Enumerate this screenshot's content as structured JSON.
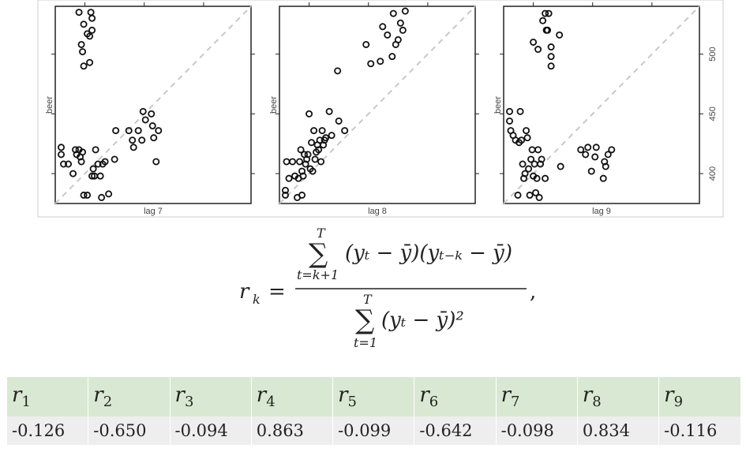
{
  "chart_data": [
    {
      "type": "scatter",
      "xlabel": "lag 7",
      "ylabel": "beer",
      "ylim": [
        375,
        540
      ],
      "xlim": [
        375,
        540
      ],
      "reference_line": "dashed diagonal y = x",
      "points": [
        [
          395,
          535
        ],
        [
          405,
          535
        ],
        [
          399,
          525
        ],
        [
          406,
          520
        ],
        [
          402,
          517
        ],
        [
          397,
          508
        ],
        [
          404,
          515
        ],
        [
          406,
          530
        ],
        [
          398,
          502
        ],
        [
          399,
          490
        ],
        [
          404,
          493
        ],
        [
          380,
          422
        ],
        [
          380,
          416
        ],
        [
          382,
          408
        ],
        [
          386,
          408
        ],
        [
          390,
          400
        ],
        [
          392,
          420
        ],
        [
          393,
          416
        ],
        [
          395,
          420
        ],
        [
          396,
          414
        ],
        [
          397,
          410
        ],
        [
          398,
          418
        ],
        [
          399,
          382
        ],
        [
          402,
          382
        ],
        [
          406,
          398
        ],
        [
          407,
          404
        ],
        [
          408,
          398
        ],
        [
          409,
          420
        ],
        [
          411,
          408
        ],
        [
          413,
          398
        ],
        [
          414,
          380
        ],
        [
          415,
          408
        ],
        [
          417,
          410
        ],
        [
          420,
          383
        ],
        [
          425,
          412
        ],
        [
          426,
          436
        ],
        [
          437,
          436
        ],
        [
          440,
          428
        ],
        [
          441,
          422
        ],
        [
          445,
          436
        ],
        [
          448,
          428
        ],
        [
          449,
          452
        ],
        [
          451,
          445
        ],
        [
          456,
          450
        ],
        [
          457,
          440
        ],
        [
          458,
          430
        ],
        [
          460,
          410
        ],
        [
          462,
          436
        ]
      ]
    },
    {
      "type": "scatter",
      "xlabel": "lag 8",
      "ylabel": "beer",
      "ylim": [
        375,
        540
      ],
      "xlim": [
        375,
        540
      ],
      "reference_line": "dashed diagonal y = x",
      "points": [
        [
          380,
          382
        ],
        [
          380,
          386
        ],
        [
          381,
          410
        ],
        [
          383,
          396
        ],
        [
          386,
          410
        ],
        [
          388,
          398
        ],
        [
          390,
          380
        ],
        [
          391,
          396
        ],
        [
          392,
          410
        ],
        [
          393,
          420
        ],
        [
          394,
          382
        ],
        [
          394,
          402
        ],
        [
          395,
          398
        ],
        [
          396,
          416
        ],
        [
          397,
          408
        ],
        [
          398,
          412
        ],
        [
          399,
          416
        ],
        [
          400,
          450
        ],
        [
          401,
          404
        ],
        [
          402,
          426
        ],
        [
          403,
          402
        ],
        [
          404,
          436
        ],
        [
          405,
          412
        ],
        [
          406,
          418
        ],
        [
          407,
          424
        ],
        [
          408,
          420
        ],
        [
          409,
          428
        ],
        [
          410,
          410
        ],
        [
          411,
          436
        ],
        [
          412,
          424
        ],
        [
          413,
          428
        ],
        [
          414,
          430
        ],
        [
          417,
          452
        ],
        [
          419,
          432
        ],
        [
          424,
          486
        ],
        [
          425,
          444
        ],
        [
          430,
          436
        ],
        [
          448,
          508
        ],
        [
          452,
          492
        ],
        [
          460,
          494
        ],
        [
          462,
          523
        ],
        [
          466,
          516
        ],
        [
          470,
          498
        ],
        [
          471,
          534
        ],
        [
          473,
          508
        ],
        [
          475,
          512
        ],
        [
          477,
          526
        ],
        [
          479,
          520
        ],
        [
          481,
          536
        ]
      ]
    },
    {
      "type": "scatter",
      "xlabel": "lag 9",
      "ylabel": "beer",
      "ylim": [
        375,
        540
      ],
      "xlim": [
        375,
        540
      ],
      "tick_labels_y": [
        "400",
        "450",
        "500"
      ],
      "reference_line": "dashed diagonal y = x",
      "points": [
        [
          380,
          452
        ],
        [
          380,
          444
        ],
        [
          381,
          436
        ],
        [
          383,
          432
        ],
        [
          385,
          428
        ],
        [
          387,
          382
        ],
        [
          388,
          426
        ],
        [
          389,
          452
        ],
        [
          390,
          428
        ],
        [
          391,
          408
        ],
        [
          392,
          396
        ],
        [
          393,
          400
        ],
        [
          394,
          436
        ],
        [
          395,
          430
        ],
        [
          396,
          404
        ],
        [
          397,
          382
        ],
        [
          398,
          412
        ],
        [
          399,
          420
        ],
        [
          400,
          398
        ],
        [
          401,
          408
        ],
        [
          402,
          384
        ],
        [
          403,
          396
        ],
        [
          404,
          420
        ],
        [
          405,
          380
        ],
        [
          406,
          408
        ],
        [
          407,
          412
        ],
        [
          410,
          396
        ],
        [
          400,
          510
        ],
        [
          404,
          504
        ],
        [
          408,
          528
        ],
        [
          410,
          534
        ],
        [
          411,
          520
        ],
        [
          412,
          520
        ],
        [
          413,
          534
        ],
        [
          415,
          506
        ],
        [
          415,
          498
        ],
        [
          415,
          490
        ],
        [
          422,
          516
        ],
        [
          423,
          406
        ],
        [
          440,
          420
        ],
        [
          444,
          416
        ],
        [
          446,
          422
        ],
        [
          449,
          402
        ],
        [
          452,
          414
        ],
        [
          453,
          422
        ],
        [
          459,
          396
        ],
        [
          460,
          410
        ],
        [
          461,
          406
        ],
        [
          463,
          416
        ],
        [
          466,
          420
        ]
      ]
    }
  ],
  "formula": {
    "lhs": "r",
    "lhs_sub": "k",
    "equals": "=",
    "num_sum_top": "T",
    "num_sum_bottom": "t=k+1",
    "num_body": "(yₜ − ȳ)(yₜ₋ₖ − ȳ)",
    "den_sum_top": "T",
    "den_sum_bottom": "t=1",
    "den_body": "(yₜ − ȳ)²",
    "trailing": ","
  },
  "table": {
    "headers": [
      {
        "base": "r",
        "sub": "1"
      },
      {
        "base": "r",
        "sub": "2"
      },
      {
        "base": "r",
        "sub": "3"
      },
      {
        "base": "r",
        "sub": "4"
      },
      {
        "base": "r",
        "sub": "5"
      },
      {
        "base": "r",
        "sub": "6"
      },
      {
        "base": "r",
        "sub": "7"
      },
      {
        "base": "r",
        "sub": "8"
      },
      {
        "base": "r",
        "sub": "9"
      }
    ],
    "values": [
      "-0.126",
      "-0.650",
      "-0.094",
      "0.863",
      "-0.099",
      "-0.642",
      "-0.098",
      "0.834",
      "-0.116"
    ]
  }
}
